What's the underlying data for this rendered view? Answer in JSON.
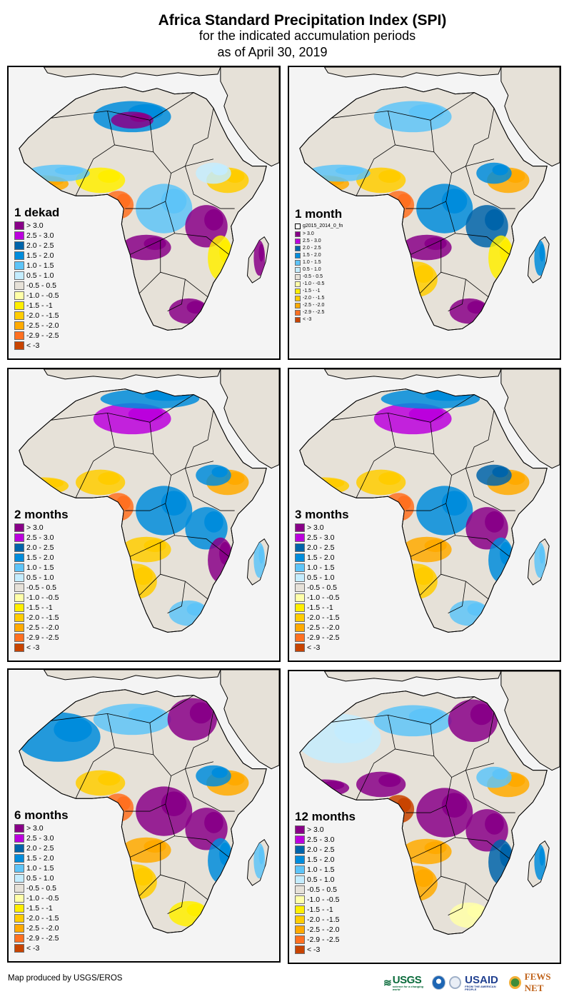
{
  "header": {
    "title": "Africa Standard Precipitation Index (SPI)",
    "subtitle": "for the indicated accumulation periods",
    "date_line": "as of April 30, 2019"
  },
  "legend_classes": [
    {
      "label": "> 3.0",
      "color": "#880088"
    },
    {
      "label": "2.5 - 3.0",
      "color": "#bb00dd"
    },
    {
      "label": "2.0 - 2.5",
      "color": "#0064aa"
    },
    {
      "label": "1.5 - 2.0",
      "color": "#008cdc"
    },
    {
      "label": "1.0 - 1.5",
      "color": "#5ec4f8"
    },
    {
      "label": "0.5 - 1.0",
      "color": "#c4ecfe"
    },
    {
      "label": "-0.5 - 0.5",
      "color": "#e6e1d8"
    },
    {
      "label": "-1.0 - -0.5",
      "color": "#ffffa8"
    },
    {
      "label": "-1.5 - -1",
      "color": "#ffee00"
    },
    {
      "label": "-2.0 - -1.5",
      "color": "#ffcc00"
    },
    {
      "label": "-2.5 - -2.0",
      "color": "#ffaa00"
    },
    {
      "label": "-2.9 - -2.5",
      "color": "#ff7020"
    },
    {
      "label": "< -3",
      "color": "#c84400"
    }
  ],
  "panels": [
    {
      "title": "1 dekad",
      "extra_legend": null,
      "blobs": [
        {
          "cls": 3,
          "region": "central-sahara"
        },
        {
          "cls": 0,
          "region": "libya-south"
        },
        {
          "cls": 10,
          "region": "west-coast"
        },
        {
          "cls": 11,
          "region": "gabon"
        },
        {
          "cls": 8,
          "region": "nigeria"
        },
        {
          "cls": 4,
          "region": "congo-basin"
        },
        {
          "cls": 0,
          "region": "angola-zambia"
        },
        {
          "cls": 0,
          "region": "tanzania"
        },
        {
          "cls": 8,
          "region": "mozambique"
        },
        {
          "cls": 0,
          "region": "south-africa-east"
        },
        {
          "cls": 0,
          "region": "madagascar-east"
        },
        {
          "cls": 9,
          "region": "horn"
        },
        {
          "cls": 5,
          "region": "ethiopia"
        },
        {
          "cls": 4,
          "region": "west-africa-sahel"
        }
      ]
    },
    {
      "title": "1 month",
      "extra_legend": "g2015_2014_0_fn",
      "blobs": [
        {
          "cls": 4,
          "region": "central-sahara"
        },
        {
          "cls": 10,
          "region": "west-coast"
        },
        {
          "cls": 11,
          "region": "gabon"
        },
        {
          "cls": 9,
          "region": "nigeria"
        },
        {
          "cls": 3,
          "region": "congo-basin"
        },
        {
          "cls": 0,
          "region": "angola-zambia"
        },
        {
          "cls": 2,
          "region": "tanzania"
        },
        {
          "cls": 8,
          "region": "mozambique"
        },
        {
          "cls": 0,
          "region": "south-africa-east"
        },
        {
          "cls": 3,
          "region": "madagascar-east"
        },
        {
          "cls": 10,
          "region": "horn"
        },
        {
          "cls": 3,
          "region": "ethiopia"
        },
        {
          "cls": 4,
          "region": "west-africa-sahel"
        },
        {
          "cls": 9,
          "region": "namibia"
        }
      ]
    },
    {
      "title": "2 months",
      "extra_legend": null,
      "blobs": [
        {
          "cls": 1,
          "region": "central-sahara"
        },
        {
          "cls": 3,
          "region": "north-coast"
        },
        {
          "cls": 9,
          "region": "west-coast"
        },
        {
          "cls": 11,
          "region": "gabon"
        },
        {
          "cls": 9,
          "region": "nigeria"
        },
        {
          "cls": 3,
          "region": "congo-basin"
        },
        {
          "cls": 9,
          "region": "angola-zambia"
        },
        {
          "cls": 3,
          "region": "tanzania"
        },
        {
          "cls": 0,
          "region": "mozambique"
        },
        {
          "cls": 4,
          "region": "south-africa-east"
        },
        {
          "cls": 4,
          "region": "madagascar-east"
        },
        {
          "cls": 10,
          "region": "horn"
        },
        {
          "cls": 3,
          "region": "ethiopia"
        },
        {
          "cls": 9,
          "region": "namibia"
        }
      ]
    },
    {
      "title": "3 months",
      "extra_legend": null,
      "blobs": [
        {
          "cls": 1,
          "region": "central-sahara"
        },
        {
          "cls": 3,
          "region": "north-coast"
        },
        {
          "cls": 9,
          "region": "west-coast"
        },
        {
          "cls": 11,
          "region": "gabon"
        },
        {
          "cls": 9,
          "region": "nigeria"
        },
        {
          "cls": 3,
          "region": "congo-basin"
        },
        {
          "cls": 10,
          "region": "angola-zambia"
        },
        {
          "cls": 0,
          "region": "tanzania"
        },
        {
          "cls": 3,
          "region": "mozambique"
        },
        {
          "cls": 4,
          "region": "south-africa-east"
        },
        {
          "cls": 4,
          "region": "madagascar-east"
        },
        {
          "cls": 10,
          "region": "horn"
        },
        {
          "cls": 2,
          "region": "ethiopia"
        },
        {
          "cls": 9,
          "region": "namibia"
        }
      ]
    },
    {
      "title": "6 months",
      "extra_legend": null,
      "blobs": [
        {
          "cls": 4,
          "region": "central-sahara"
        },
        {
          "cls": 0,
          "region": "egypt"
        },
        {
          "cls": 3,
          "region": "west-sahara"
        },
        {
          "cls": 11,
          "region": "gabon"
        },
        {
          "cls": 9,
          "region": "nigeria"
        },
        {
          "cls": 0,
          "region": "congo-basin"
        },
        {
          "cls": 10,
          "region": "angola-zambia"
        },
        {
          "cls": 0,
          "region": "tanzania"
        },
        {
          "cls": 3,
          "region": "mozambique"
        },
        {
          "cls": 8,
          "region": "south-africa-east"
        },
        {
          "cls": 4,
          "region": "madagascar-east"
        },
        {
          "cls": 10,
          "region": "horn"
        },
        {
          "cls": 3,
          "region": "ethiopia"
        },
        {
          "cls": 9,
          "region": "namibia"
        }
      ]
    },
    {
      "title": "12 months",
      "extra_legend": null,
      "blobs": [
        {
          "cls": 4,
          "region": "central-sahara"
        },
        {
          "cls": 0,
          "region": "egypt"
        },
        {
          "cls": 5,
          "region": "west-sahara"
        },
        {
          "cls": 0,
          "region": "west-coast"
        },
        {
          "cls": 12,
          "region": "gabon"
        },
        {
          "cls": 0,
          "region": "nigeria"
        },
        {
          "cls": 0,
          "region": "congo-basin"
        },
        {
          "cls": 10,
          "region": "angola-zambia"
        },
        {
          "cls": 0,
          "region": "tanzania"
        },
        {
          "cls": 2,
          "region": "mozambique"
        },
        {
          "cls": 7,
          "region": "south-africa-east"
        },
        {
          "cls": 3,
          "region": "madagascar-east"
        },
        {
          "cls": 10,
          "region": "horn"
        },
        {
          "cls": 4,
          "region": "ethiopia"
        },
        {
          "cls": 10,
          "region": "namibia"
        }
      ]
    }
  ],
  "footer": {
    "credit": "Map produced by USGS/EROS",
    "logos": {
      "usgs": "USGS",
      "usgs_tagline": "science for a changing world",
      "usaid": "USAID",
      "usaid_tagline": "FROM THE AMERICAN PEOPLE",
      "fews": "FEWS NET"
    }
  }
}
